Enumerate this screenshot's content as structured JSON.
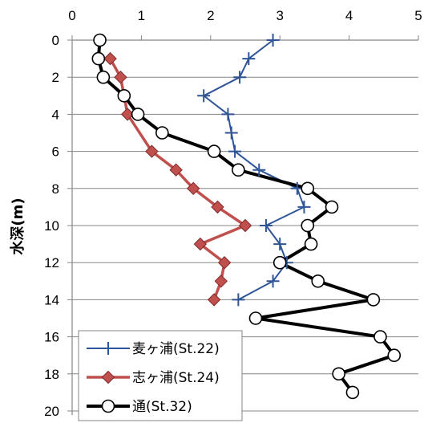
{
  "chart_data": {
    "type": "line",
    "title": "",
    "xlabel": "",
    "ylabel": "水深(m)",
    "xlim": [
      0,
      5
    ],
    "ylim": [
      0,
      20
    ],
    "y_inverted": true,
    "x_axis_position": "top",
    "x_ticks": [
      "0",
      "1",
      "2",
      "3",
      "4",
      "5"
    ],
    "y_ticks": [
      "0",
      "2",
      "4",
      "6",
      "8",
      "10",
      "12",
      "14",
      "16",
      "18",
      "20"
    ],
    "grid": "horizontal",
    "legend_position": "bottom-left",
    "series": [
      {
        "name": "麦ヶ浦(St.22)",
        "color": "#2f5597",
        "marker": "plus",
        "points": [
          [
            2.9,
            0
          ],
          [
            2.55,
            1
          ],
          [
            2.42,
            2
          ],
          [
            1.9,
            3
          ],
          [
            2.25,
            4
          ],
          [
            2.3,
            5
          ],
          [
            2.35,
            6
          ],
          [
            2.7,
            7
          ],
          [
            3.25,
            8
          ],
          [
            3.35,
            9
          ],
          [
            2.8,
            10
          ],
          [
            3.0,
            11
          ],
          [
            3.1,
            12
          ],
          [
            2.9,
            13
          ],
          [
            2.4,
            14
          ]
        ]
      },
      {
        "name": "志ヶ浦(St.24)",
        "color": "#c0504d",
        "marker": "diamond",
        "points": [
          [
            0.55,
            1
          ],
          [
            0.7,
            2
          ],
          [
            0.75,
            3
          ],
          [
            0.8,
            4
          ],
          [
            1.15,
            6
          ],
          [
            1.5,
            7
          ],
          [
            1.75,
            8
          ],
          [
            2.1,
            9
          ],
          [
            2.5,
            10
          ],
          [
            1.85,
            11
          ],
          [
            2.2,
            12
          ],
          [
            2.15,
            13
          ],
          [
            2.05,
            14
          ]
        ]
      },
      {
        "name": "通(St.32)",
        "color": "#000000",
        "marker": "circle",
        "points": [
          [
            0.4,
            0
          ],
          [
            0.38,
            1
          ],
          [
            0.45,
            2
          ],
          [
            0.75,
            3
          ],
          [
            0.95,
            4
          ],
          [
            1.3,
            5
          ],
          [
            2.05,
            6
          ],
          [
            2.4,
            7
          ],
          [
            3.4,
            8
          ],
          [
            3.75,
            9
          ],
          [
            3.4,
            10
          ],
          [
            3.45,
            11
          ],
          [
            3.0,
            12
          ],
          [
            3.55,
            13
          ],
          [
            4.35,
            14
          ],
          [
            2.65,
            15
          ],
          [
            4.45,
            16
          ],
          [
            4.65,
            17
          ],
          [
            3.85,
            18
          ],
          [
            4.05,
            19
          ]
        ]
      }
    ]
  }
}
